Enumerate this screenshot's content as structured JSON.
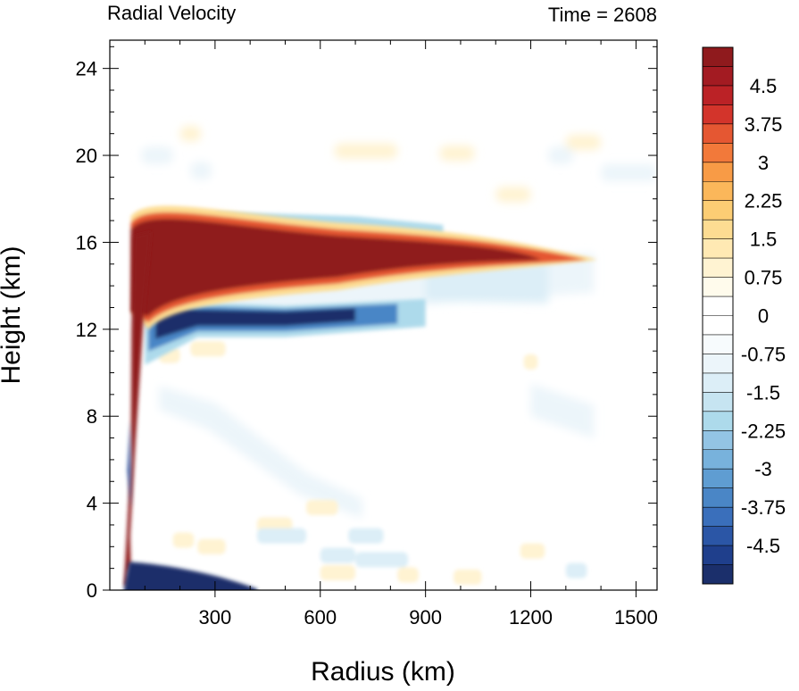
{
  "chart_data": {
    "type": "heatmap",
    "title": "Radial Velocity",
    "subtitle": "Time = 2608",
    "xlabel": "Radius (km)",
    "ylabel": "Height (km)",
    "xlim": [
      0,
      1560
    ],
    "ylim": [
      0,
      25.3
    ],
    "xticks": [
      300,
      600,
      900,
      1200,
      1500
    ],
    "yticks": [
      0,
      4,
      8,
      12,
      16,
      20,
      24
    ],
    "xtick_labels": [
      "300",
      "600",
      "900",
      "1200",
      "1500"
    ],
    "ytick_labels": [
      "0",
      "4",
      "8",
      "12",
      "16",
      "20",
      "24"
    ],
    "colorbar": {
      "min": -5.25,
      "max": 5.25,
      "step": 0.375,
      "tick_values": [
        4.5,
        3.75,
        3,
        2.25,
        1.5,
        0.75,
        0,
        -0.75,
        -1.5,
        -2.25,
        -3,
        -3.75,
        -4.5
      ],
      "tick_labels": [
        "4.5",
        "3.75",
        "3",
        "2.25",
        "1.5",
        "0.75",
        "0",
        "-0.75",
        "-1.5",
        "-2.25",
        "-3",
        "-3.75",
        "-4.5"
      ],
      "colors": [
        "#1b2f6b",
        "#1f3f8c",
        "#2b56a6",
        "#3a6fbb",
        "#4a86c6",
        "#5f9dd2",
        "#78b2dc",
        "#93c4e4",
        "#addaeb",
        "#c6e4f1",
        "#dceef7",
        "#ecf5fa",
        "#f7fbfd",
        "#ffffff",
        "#ffffff",
        "#fffbec",
        "#fff3d2",
        "#ffe9b3",
        "#fddc92",
        "#fccd74",
        "#fbb75a",
        "#f89b46",
        "#f2793a",
        "#e55732",
        "#d3342b",
        "#bb2226",
        "#a31b22",
        "#8f1a1d"
      ]
    },
    "features": [
      {
        "name": "Upper-level outflow jet",
        "kind": "positive",
        "peak_value": 6.0,
        "radius_start": 40,
        "radius_end": 1380,
        "height_center": 15.2,
        "thickness": 2.6
      },
      {
        "name": "Eyewall updraft outflow",
        "kind": "positive",
        "peak_value": 6.0,
        "radius_start": 40,
        "radius_end": 90,
        "height_range": [
          0,
          16.5
        ]
      },
      {
        "name": "Mid-upper inflow layer",
        "kind": "negative",
        "peak_value": -5.5,
        "radius_start": 110,
        "radius_end": 800,
        "height_center": 12.5,
        "thickness": 1.4
      },
      {
        "name": "Boundary-layer inflow",
        "kind": "negative",
        "peak_value": -6.0,
        "radius_start": 40,
        "radius_end": 420,
        "height_range": [
          0,
          1.2
        ]
      },
      {
        "name": "Weak inflow above jet",
        "kind": "negative",
        "peak_value": -2.0,
        "radius_start": 280,
        "radius_end": 950,
        "height_center": 17.2
      },
      {
        "name": "Broad weak inflow band",
        "kind": "negative",
        "peak_value": -1.4,
        "radius_start": 150,
        "radius_end": 1380,
        "height_center": 13.8
      },
      {
        "name": "Mid-level weak inflow",
        "kind": "negative",
        "peak_value": -1.0,
        "radius_start": 150,
        "radius_end": 700,
        "height_center": 7.0
      },
      {
        "name": "Upper weak outflow patches",
        "kind": "positive",
        "peak_value": 1.2,
        "radius_start": 600,
        "radius_end": 1200,
        "height_center": 20.3
      },
      {
        "name": "Low-level weak outflow patches",
        "kind": "positive",
        "peak_value": 1.2,
        "radius_start": 150,
        "radius_end": 1300,
        "height_center": 1.0
      }
    ]
  }
}
